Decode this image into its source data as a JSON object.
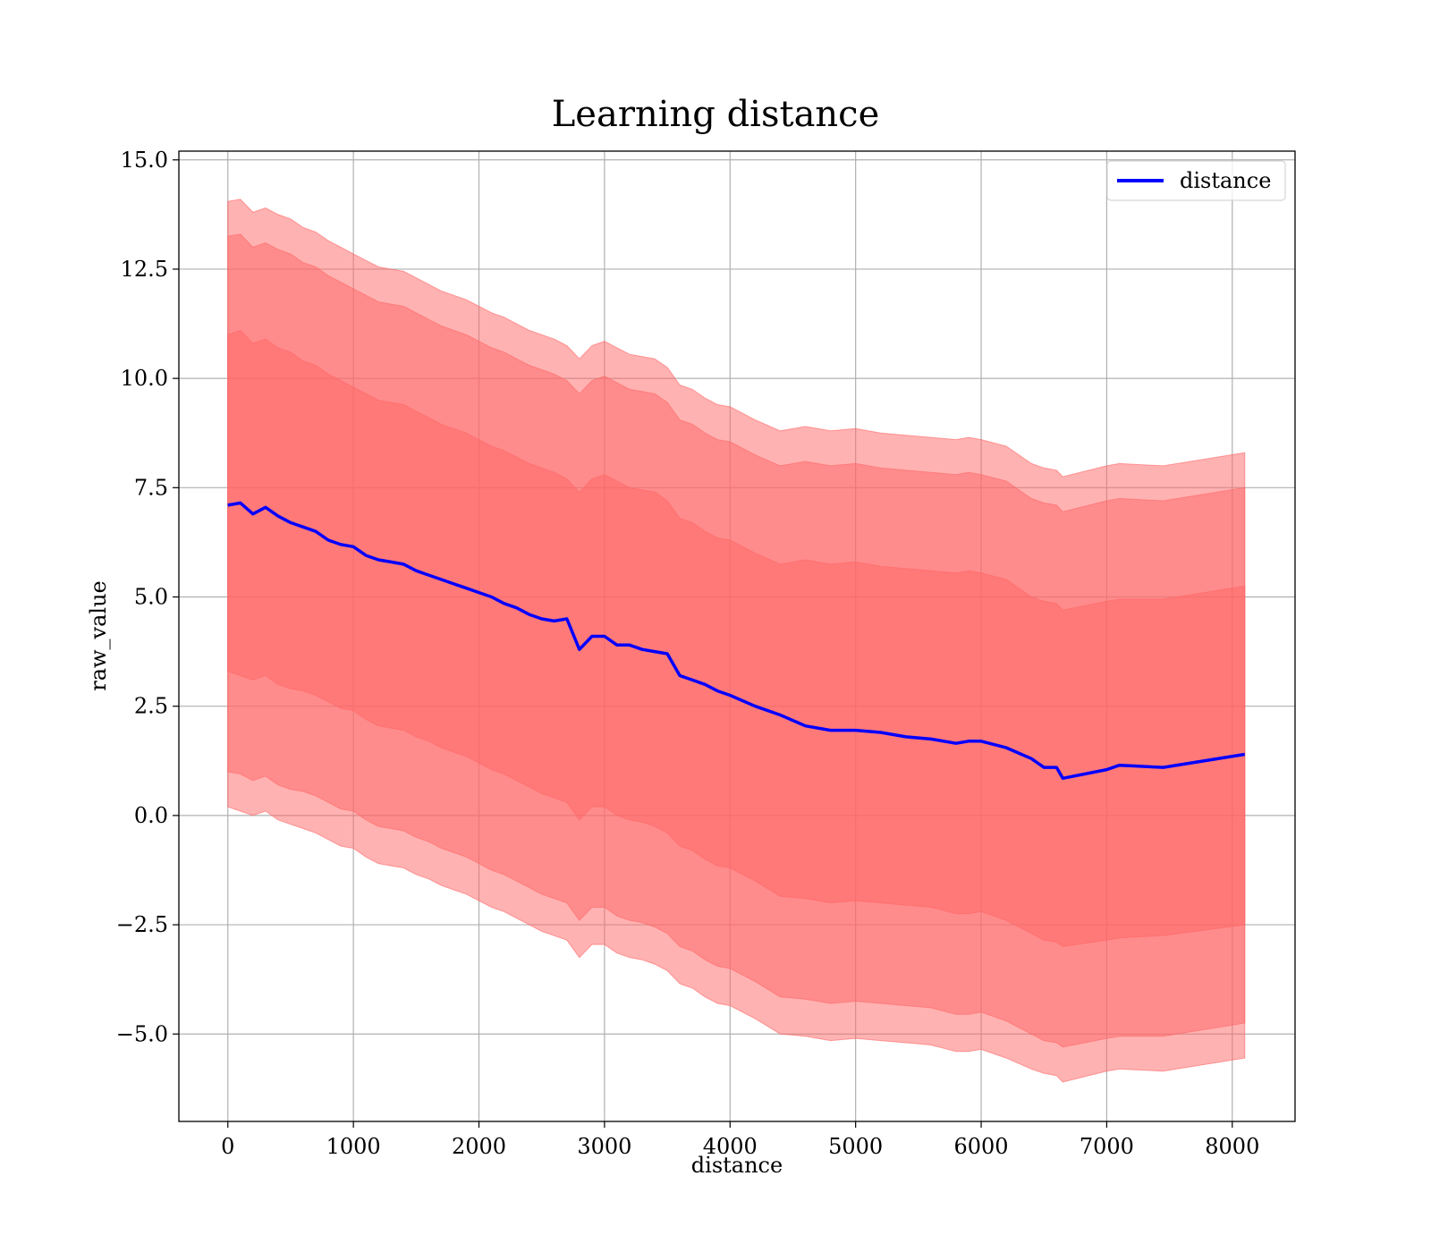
{
  "chart_data": {
    "type": "line",
    "title": "Learning distance",
    "xlabel": "distance",
    "ylabel": "raw_value",
    "xlim": [
      -390,
      8500
    ],
    "ylim": [
      -7.0,
      15.2
    ],
    "xticks": [
      0,
      1000,
      2000,
      3000,
      4000,
      5000,
      6000,
      7000,
      8000
    ],
    "xtick_labels": [
      "0",
      "1000",
      "2000",
      "3000",
      "4000",
      "5000",
      "6000",
      "7000",
      "8000"
    ],
    "yticks": [
      -5.0,
      -2.5,
      0.0,
      2.5,
      5.0,
      7.5,
      10.0,
      12.5,
      15.0
    ],
    "ytick_labels": [
      "−5.0",
      "−2.5",
      "0.0",
      "2.5",
      "5.0",
      "7.5",
      "10.0",
      "12.5",
      "15.0"
    ],
    "grid": true,
    "legend": {
      "position": "top-right",
      "entries": [
        "distance"
      ]
    },
    "colors": {
      "line": "#0000ff",
      "band": "#ff6666"
    },
    "x": [
      0,
      100,
      200,
      300,
      400,
      500,
      600,
      700,
      800,
      900,
      1000,
      1100,
      1200,
      1300,
      1400,
      1500,
      1600,
      1700,
      1800,
      1900,
      2000,
      2100,
      2200,
      2300,
      2400,
      2500,
      2600,
      2700,
      2800,
      2900,
      3000,
      3100,
      3200,
      3300,
      3400,
      3500,
      3600,
      3700,
      3800,
      3900,
      4000,
      4200,
      4400,
      4600,
      4800,
      5000,
      5200,
      5400,
      5600,
      5800,
      5900,
      6000,
      6200,
      6400,
      6500,
      6600,
      6650,
      7000,
      7100,
      7450,
      8100
    ],
    "series": [
      {
        "name": "distance",
        "values": [
          7.1,
          7.15,
          6.9,
          7.05,
          6.85,
          6.7,
          6.6,
          6.5,
          6.3,
          6.2,
          6.15,
          5.95,
          5.85,
          5.8,
          5.75,
          5.6,
          5.5,
          5.4,
          5.3,
          5.2,
          5.1,
          5.0,
          4.85,
          4.75,
          4.6,
          4.5,
          4.45,
          4.5,
          3.8,
          4.1,
          4.1,
          3.9,
          3.9,
          3.8,
          3.75,
          3.7,
          3.2,
          3.1,
          3.0,
          2.85,
          2.75,
          2.5,
          2.3,
          2.05,
          1.95,
          1.95,
          1.9,
          1.8,
          1.75,
          1.65,
          1.7,
          1.7,
          1.55,
          1.3,
          1.1,
          1.1,
          0.85,
          1.05,
          1.15,
          1.1,
          1.4
        ]
      }
    ],
    "bands": [
      {
        "lower": [
          3.3,
          3.2,
          3.1,
          3.2,
          3.0,
          2.9,
          2.85,
          2.75,
          2.6,
          2.45,
          2.4,
          2.2,
          2.05,
          2.0,
          1.95,
          1.8,
          1.7,
          1.55,
          1.45,
          1.35,
          1.2,
          1.05,
          0.95,
          0.8,
          0.65,
          0.5,
          0.4,
          0.3,
          -0.1,
          0.2,
          0.2,
          0.0,
          -0.1,
          -0.15,
          -0.25,
          -0.4,
          -0.7,
          -0.8,
          -1.0,
          -1.15,
          -1.2,
          -1.5,
          -1.85,
          -1.9,
          -2.0,
          -1.95,
          -2.0,
          -2.05,
          -2.1,
          -2.25,
          -2.25,
          -2.2,
          -2.4,
          -2.7,
          -2.85,
          -2.9,
          -3.0,
          -2.85,
          -2.8,
          -2.75,
          -2.5
        ],
        "upper": [
          11.0,
          11.1,
          10.8,
          10.9,
          10.7,
          10.6,
          10.4,
          10.3,
          10.1,
          9.95,
          9.8,
          9.65,
          9.5,
          9.45,
          9.4,
          9.25,
          9.1,
          8.95,
          8.85,
          8.75,
          8.6,
          8.45,
          8.35,
          8.2,
          8.05,
          7.95,
          7.85,
          7.7,
          7.4,
          7.7,
          7.8,
          7.65,
          7.5,
          7.45,
          7.4,
          7.2,
          6.8,
          6.7,
          6.5,
          6.35,
          6.3,
          6.0,
          5.75,
          5.85,
          5.75,
          5.8,
          5.7,
          5.65,
          5.6,
          5.55,
          5.6,
          5.55,
          5.4,
          5.0,
          4.9,
          4.85,
          4.7,
          4.9,
          4.95,
          4.95,
          5.25
        ]
      },
      {
        "lower": [
          1.0,
          0.95,
          0.8,
          0.9,
          0.7,
          0.6,
          0.55,
          0.45,
          0.3,
          0.15,
          0.1,
          -0.1,
          -0.25,
          -0.3,
          -0.35,
          -0.5,
          -0.6,
          -0.75,
          -0.85,
          -0.95,
          -1.1,
          -1.25,
          -1.35,
          -1.5,
          -1.65,
          -1.8,
          -1.9,
          -2.0,
          -2.4,
          -2.1,
          -2.1,
          -2.3,
          -2.4,
          -2.45,
          -2.55,
          -2.7,
          -3.0,
          -3.1,
          -3.3,
          -3.45,
          -3.5,
          -3.8,
          -4.15,
          -4.2,
          -4.3,
          -4.25,
          -4.3,
          -4.35,
          -4.4,
          -4.55,
          -4.55,
          -4.5,
          -4.7,
          -5.0,
          -5.15,
          -5.2,
          -5.3,
          -5.1,
          -5.05,
          -5.05,
          -4.75
        ],
        "upper": [
          13.25,
          13.3,
          13.0,
          13.1,
          12.95,
          12.85,
          12.65,
          12.55,
          12.35,
          12.2,
          12.05,
          11.9,
          11.75,
          11.7,
          11.65,
          11.5,
          11.35,
          11.2,
          11.1,
          11.0,
          10.85,
          10.7,
          10.6,
          10.45,
          10.3,
          10.2,
          10.1,
          9.95,
          9.65,
          9.95,
          10.05,
          9.9,
          9.75,
          9.7,
          9.65,
          9.45,
          9.05,
          8.95,
          8.75,
          8.6,
          8.55,
          8.25,
          8.0,
          8.1,
          8.0,
          8.05,
          7.95,
          7.9,
          7.85,
          7.8,
          7.85,
          7.8,
          7.65,
          7.25,
          7.15,
          7.1,
          6.95,
          7.2,
          7.25,
          7.2,
          7.5
        ]
      },
      {
        "lower": [
          0.2,
          0.1,
          0.0,
          0.1,
          -0.1,
          -0.2,
          -0.3,
          -0.4,
          -0.55,
          -0.7,
          -0.75,
          -0.95,
          -1.1,
          -1.15,
          -1.2,
          -1.35,
          -1.45,
          -1.6,
          -1.7,
          -1.8,
          -1.95,
          -2.1,
          -2.2,
          -2.35,
          -2.5,
          -2.65,
          -2.75,
          -2.85,
          -3.25,
          -2.95,
          -2.95,
          -3.15,
          -3.25,
          -3.3,
          -3.4,
          -3.55,
          -3.85,
          -3.95,
          -4.15,
          -4.3,
          -4.35,
          -4.65,
          -5.0,
          -5.05,
          -5.15,
          -5.1,
          -5.15,
          -5.2,
          -5.25,
          -5.4,
          -5.4,
          -5.35,
          -5.55,
          -5.8,
          -5.9,
          -5.95,
          -6.1,
          -5.85,
          -5.8,
          -5.85,
          -5.55
        ],
        "upper": [
          14.05,
          14.1,
          13.8,
          13.9,
          13.75,
          13.65,
          13.45,
          13.35,
          13.15,
          13.0,
          12.85,
          12.7,
          12.55,
          12.5,
          12.45,
          12.3,
          12.15,
          12.0,
          11.9,
          11.8,
          11.65,
          11.5,
          11.4,
          11.25,
          11.1,
          11.0,
          10.9,
          10.75,
          10.45,
          10.75,
          10.85,
          10.7,
          10.55,
          10.5,
          10.45,
          10.25,
          9.85,
          9.75,
          9.55,
          9.4,
          9.35,
          9.05,
          8.8,
          8.9,
          8.8,
          8.85,
          8.75,
          8.7,
          8.65,
          8.6,
          8.65,
          8.6,
          8.45,
          8.05,
          7.95,
          7.9,
          7.75,
          8.0,
          8.05,
          8.0,
          8.3
        ]
      }
    ]
  }
}
